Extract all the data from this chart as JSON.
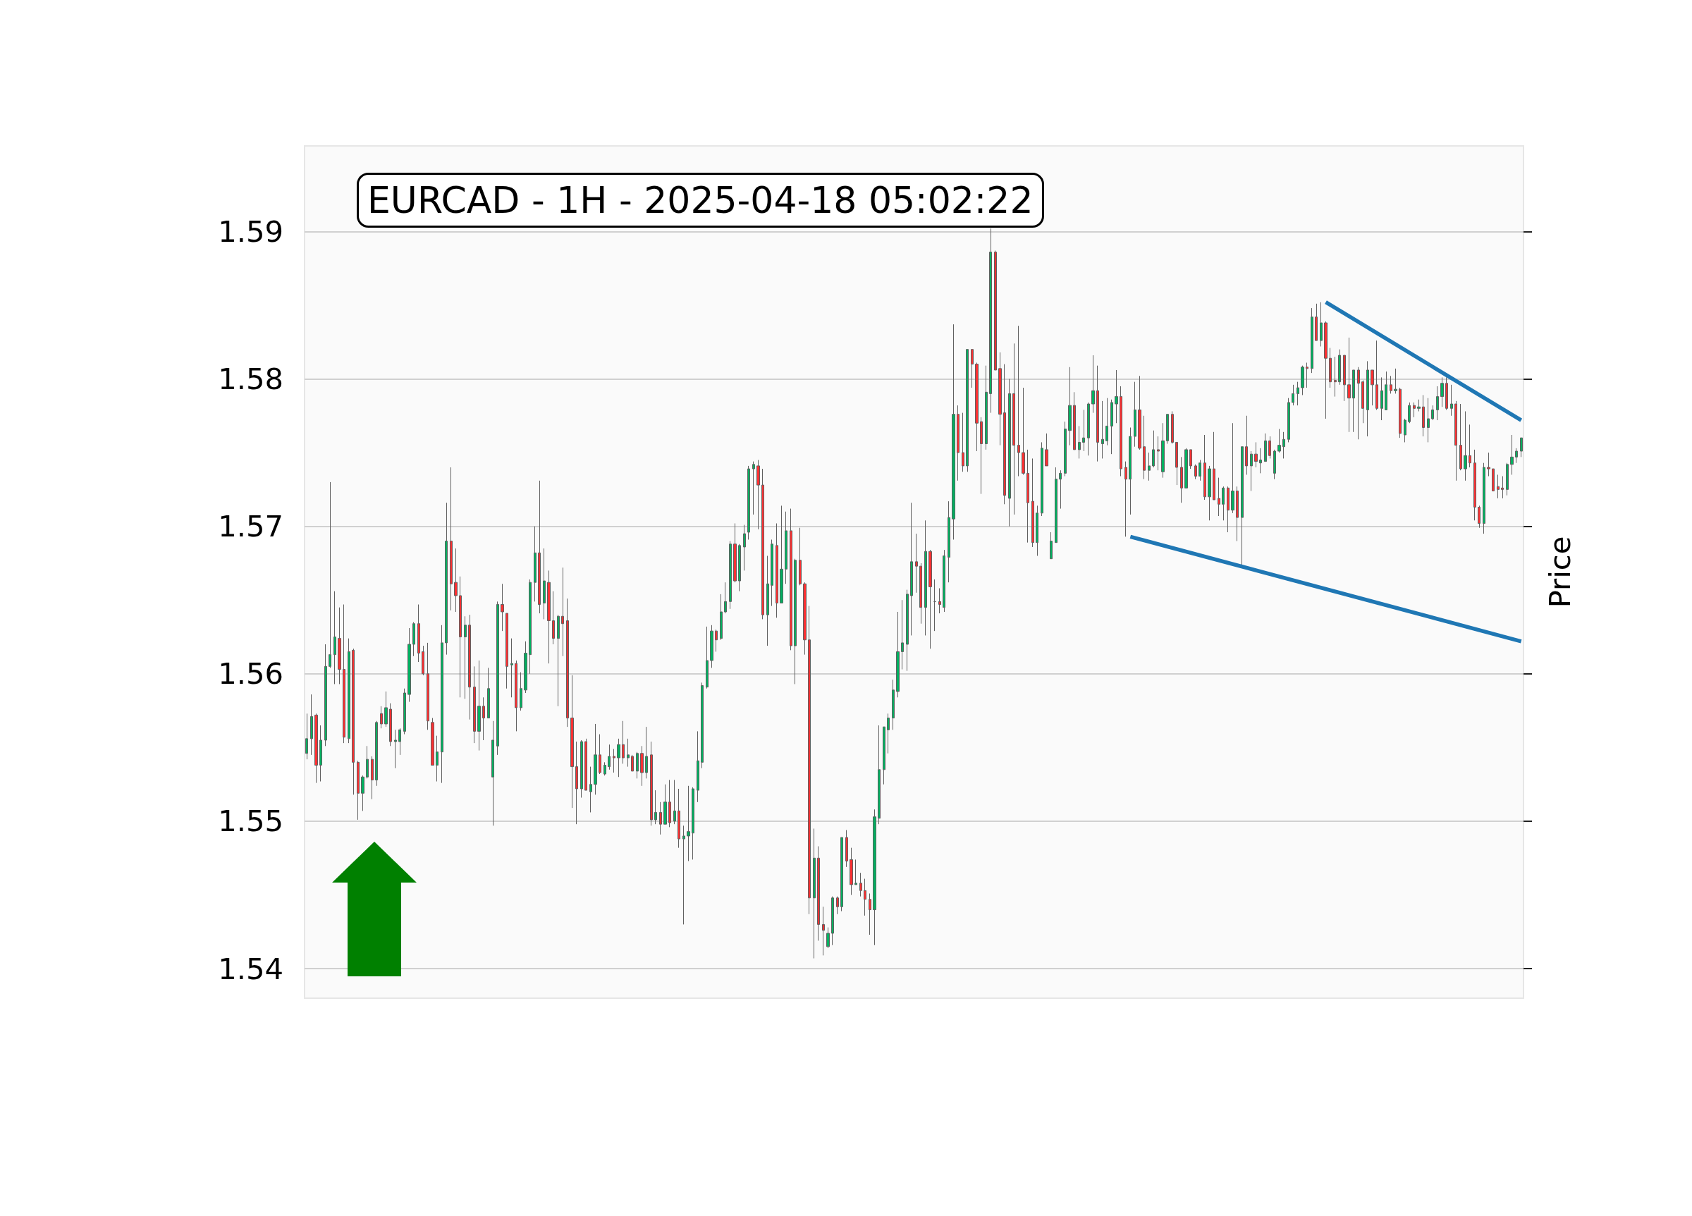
{
  "chart_data": {
    "type": "candlestick",
    "title": "EURCAD - 1H - 2025-04-18 05:02:22",
    "ylabel": "Price",
    "categories": [
      null,
      null,
      null,
      null,
      null,
      null,
      null,
      null,
      null,
      null,
      null,
      null,
      null,
      null,
      null,
      null,
      null,
      null,
      null,
      null,
      null,
      null,
      null,
      null,
      null,
      null,
      null,
      null,
      null,
      null,
      null,
      null,
      null,
      null,
      null,
      null,
      null,
      null,
      null,
      null,
      null,
      null,
      null,
      null,
      null,
      null,
      null,
      null,
      null,
      null,
      null,
      null,
      null,
      null,
      null,
      null,
      null,
      null,
      null,
      null,
      null,
      null,
      null,
      null,
      null,
      null,
      null,
      null,
      null,
      null,
      null,
      null,
      null,
      null,
      null,
      null,
      null,
      null,
      null,
      null,
      null,
      null,
      null,
      null,
      null,
      null,
      null,
      null,
      null,
      null,
      null,
      null,
      null,
      null,
      null,
      null,
      null,
      null,
      null,
      null,
      null,
      null,
      null,
      null,
      null,
      null,
      null,
      null,
      null,
      null,
      null,
      null,
      null,
      null,
      null,
      null,
      null,
      null,
      null,
      null,
      null,
      null,
      null,
      null,
      null,
      null,
      null,
      null,
      null,
      null,
      null,
      null,
      null,
      null,
      null,
      null,
      null,
      null,
      null,
      null,
      null,
      null,
      null,
      null,
      null,
      null,
      null,
      null,
      null,
      null,
      null,
      null,
      null,
      null,
      null,
      null,
      null,
      null,
      null,
      null,
      null,
      null,
      null,
      null,
      null,
      null,
      null,
      null,
      null,
      null,
      null,
      null,
      null,
      null,
      null,
      null,
      null,
      null,
      null,
      null,
      null,
      null,
      null,
      null,
      null,
      null,
      null,
      null,
      null,
      null,
      null,
      null,
      null,
      null,
      null,
      null,
      null,
      null,
      null,
      null,
      null,
      null,
      null,
      null,
      null,
      null,
      null,
      null,
      null,
      null,
      null,
      null,
      null,
      null,
      null,
      null,
      null,
      null,
      null,
      null,
      null,
      null,
      null,
      null,
      null,
      null,
      null,
      null,
      null,
      null,
      null,
      null,
      null,
      null,
      null,
      null,
      null,
      null,
      null,
      null,
      null,
      null,
      null,
      null,
      null,
      null,
      null,
      null,
      null,
      null,
      null,
      null,
      null,
      null,
      null,
      null,
      null,
      null,
      null,
      null,
      null,
      null
    ],
    "ohlc": [
      [
        1.5546,
        1.5573,
        1.5542,
        1.5556
      ],
      [
        1.5556,
        1.5586,
        1.5545,
        1.5571
      ],
      [
        1.5572,
        1.5573,
        1.5526,
        1.5538
      ],
      [
        1.5538,
        1.5565,
        1.5527,
        1.5555
      ],
      [
        1.5555,
        1.562,
        1.5551,
        1.5605
      ],
      [
        1.5605,
        1.573,
        1.5604,
        1.5613
      ],
      [
        1.5613,
        1.5656,
        1.5593,
        1.5625
      ],
      [
        1.5624,
        1.5645,
        1.5593,
        1.5603
      ],
      [
        1.5603,
        1.5647,
        1.5553,
        1.5557
      ],
      [
        1.5556,
        1.5624,
        1.5553,
        1.5615
      ],
      [
        1.5616,
        1.5617,
        1.5518,
        1.554
      ],
      [
        1.554,
        1.5541,
        1.5501,
        1.5519
      ],
      [
        1.5519,
        1.5531,
        1.5507,
        1.553
      ],
      [
        1.553,
        1.5551,
        1.5529,
        1.5542
      ],
      [
        1.5542,
        1.5544,
        1.5515,
        1.5528
      ],
      [
        1.5528,
        1.5568,
        1.5524,
        1.5567
      ],
      [
        1.5573,
        1.5578,
        1.5563,
        1.5566
      ],
      [
        1.5566,
        1.5588,
        1.5564,
        1.5577
      ],
      [
        1.5576,
        1.558,
        1.5551,
        1.5554
      ],
      [
        1.5554,
        1.5562,
        1.5536,
        1.5555
      ],
      [
        1.5554,
        1.5563,
        1.5545,
        1.5562
      ],
      [
        1.5561,
        1.559,
        1.5559,
        1.5587
      ],
      [
        1.5586,
        1.5631,
        1.5581,
        1.562
      ],
      [
        1.562,
        1.5635,
        1.5612,
        1.5634
      ],
      [
        1.5634,
        1.5647,
        1.5608,
        1.5614
      ],
      [
        1.5615,
        1.5619,
        1.5599,
        1.56
      ],
      [
        1.56,
        1.5621,
        1.5562,
        1.5568
      ],
      [
        1.5567,
        1.557,
        1.5538,
        1.5538
      ],
      [
        1.5538,
        1.5558,
        1.5527,
        1.5547
      ],
      [
        1.5547,
        1.5633,
        1.5526,
        1.5621
      ],
      [
        1.5621,
        1.5716,
        1.5613,
        1.569
      ],
      [
        1.569,
        1.574,
        1.5643,
        1.5661
      ],
      [
        1.5662,
        1.5685,
        1.5642,
        1.5653
      ],
      [
        1.5653,
        1.5666,
        1.5584,
        1.5625
      ],
      [
        1.5625,
        1.5639,
        1.5583,
        1.5633
      ],
      [
        1.5633,
        1.564,
        1.5569,
        1.5591
      ],
      [
        1.5591,
        1.5605,
        1.5553,
        1.5561
      ],
      [
        1.5561,
        1.5609,
        1.5548,
        1.5578
      ],
      [
        1.5578,
        1.5584,
        1.5555,
        1.557
      ],
      [
        1.557,
        1.5604,
        1.557,
        1.559
      ],
      [
        1.553,
        1.5568,
        1.5497,
        1.5555
      ],
      [
        1.5551,
        1.5649,
        1.5545,
        1.5647
      ],
      [
        1.5647,
        1.5661,
        1.5629,
        1.5642
      ],
      [
        1.5641,
        1.5641,
        1.559,
        1.5605
      ],
      [
        1.5606,
        1.5624,
        1.5584,
        1.5607
      ],
      [
        1.5607,
        1.5609,
        1.5561,
        1.5577
      ],
      [
        1.5577,
        1.5601,
        1.5575,
        1.559
      ],
      [
        1.5589,
        1.5622,
        1.5587,
        1.5614
      ],
      [
        1.5613,
        1.5664,
        1.56,
        1.5662
      ],
      [
        1.5662,
        1.57,
        1.5649,
        1.5682
      ],
      [
        1.5682,
        1.5731,
        1.5641,
        1.5647
      ],
      [
        1.5648,
        1.5685,
        1.5637,
        1.5663
      ],
      [
        1.5662,
        1.567,
        1.5607,
        1.5636
      ],
      [
        1.5636,
        1.5656,
        1.562,
        1.5624
      ],
      [
        1.5624,
        1.564,
        1.5578,
        1.5639
      ],
      [
        1.5639,
        1.5672,
        1.5612,
        1.5634
      ],
      [
        1.5636,
        1.5651,
        1.5564,
        1.557
      ],
      [
        1.557,
        1.5599,
        1.5509,
        1.5537
      ],
      [
        1.5537,
        1.5554,
        1.5498,
        1.5522
      ],
      [
        1.5522,
        1.5555,
        1.5516,
        1.5554
      ],
      [
        1.5554,
        1.5556,
        1.5521,
        1.5521
      ],
      [
        1.552,
        1.5537,
        1.5506,
        1.5525
      ],
      [
        1.5525,
        1.5566,
        1.5518,
        1.5545
      ],
      [
        1.5545,
        1.5559,
        1.5532,
        1.5533
      ],
      [
        1.5532,
        1.554,
        1.5531,
        1.5538
      ],
      [
        1.5537,
        1.5552,
        1.5535,
        1.5544
      ],
      [
        1.5544,
        1.5549,
        1.5533,
        1.5543
      ],
      [
        1.5543,
        1.5556,
        1.553,
        1.5552
      ],
      [
        1.5552,
        1.5568,
        1.5539,
        1.5543
      ],
      [
        1.5543,
        1.5556,
        1.5537,
        1.5545
      ],
      [
        1.5544,
        1.5545,
        1.5534,
        1.5534
      ],
      [
        1.5534,
        1.5547,
        1.5529,
        1.5546
      ],
      [
        1.5546,
        1.5551,
        1.5524,
        1.5533
      ],
      [
        1.5533,
        1.5564,
        1.5529,
        1.5544
      ],
      [
        1.5545,
        1.5554,
        1.5497,
        1.5501
      ],
      [
        1.5501,
        1.5521,
        1.5498,
        1.5506
      ],
      [
        1.5506,
        1.5513,
        1.5491,
        1.5498
      ],
      [
        1.5498,
        1.5525,
        1.5498,
        1.5513
      ],
      [
        1.5513,
        1.5528,
        1.5496,
        1.5499
      ],
      [
        1.55,
        1.5528,
        1.5498,
        1.5507
      ],
      [
        1.5507,
        1.5522,
        1.5482,
        1.5488
      ],
      [
        1.5488,
        1.5497,
        1.543,
        1.549
      ],
      [
        1.549,
        1.5524,
        1.5473,
        1.5493
      ],
      [
        1.5492,
        1.5523,
        1.5474,
        1.5522
      ],
      [
        1.5521,
        1.5561,
        1.5513,
        1.5541
      ],
      [
        1.554,
        1.5594,
        1.5536,
        1.5592
      ],
      [
        1.5591,
        1.5632,
        1.559,
        1.5609
      ],
      [
        1.5609,
        1.5633,
        1.5604,
        1.5629
      ],
      [
        1.5629,
        1.563,
        1.5615,
        1.5623
      ],
      [
        1.5624,
        1.5654,
        1.5623,
        1.5642
      ],
      [
        1.5642,
        1.5662,
        1.5641,
        1.5649
      ],
      [
        1.5649,
        1.569,
        1.5644,
        1.5688
      ],
      [
        1.5688,
        1.5702,
        1.5662,
        1.5663
      ],
      [
        1.5663,
        1.5688,
        1.5656,
        1.5687
      ],
      [
        1.5686,
        1.5701,
        1.567,
        1.5695
      ],
      [
        1.5696,
        1.5741,
        1.5691,
        1.5739
      ],
      [
        1.5739,
        1.5744,
        1.5708,
        1.5742
      ],
      [
        1.5741,
        1.5745,
        1.5698,
        1.5728
      ],
      [
        1.5728,
        1.5739,
        1.5637,
        1.564
      ],
      [
        1.564,
        1.568,
        1.5619,
        1.5661
      ],
      [
        1.566,
        1.5691,
        1.5646,
        1.5688
      ],
      [
        1.5687,
        1.5702,
        1.5638,
        1.5648
      ],
      [
        1.5648,
        1.5714,
        1.5648,
        1.5671
      ],
      [
        1.5671,
        1.571,
        1.5661,
        1.5697
      ],
      [
        1.5697,
        1.5712,
        1.5616,
        1.5619
      ],
      [
        1.5619,
        1.5678,
        1.5593,
        1.5677
      ],
      [
        1.5677,
        1.5699,
        1.566,
        1.5661
      ],
      [
        1.5661,
        1.5662,
        1.5613,
        1.5623
      ],
      [
        1.5623,
        1.5646,
        1.5437,
        1.5448
      ],
      [
        1.5448,
        1.5495,
        1.5407,
        1.5475
      ],
      [
        1.5475,
        1.5483,
        1.5419,
        1.543
      ],
      [
        1.543,
        1.5442,
        1.5409,
        1.5426
      ],
      [
        1.5415,
        1.5428,
        1.5414,
        1.5424
      ],
      [
        1.5424,
        1.5449,
        1.5416,
        1.5448
      ],
      [
        1.5448,
        1.5449,
        1.5437,
        1.5442
      ],
      [
        1.5442,
        1.5489,
        1.5439,
        1.5489
      ],
      [
        1.5489,
        1.5494,
        1.5469,
        1.5473
      ],
      [
        1.5474,
        1.5482,
        1.545,
        1.5457
      ],
      [
        1.5457,
        1.5474,
        1.5457,
        1.5458
      ],
      [
        1.5458,
        1.5465,
        1.5449,
        1.5453
      ],
      [
        1.5453,
        1.5461,
        1.5436,
        1.5447
      ],
      [
        1.5447,
        1.5451,
        1.5423,
        1.544
      ],
      [
        1.544,
        1.5508,
        1.5416,
        1.5503
      ],
      [
        1.5502,
        1.5565,
        1.5498,
        1.5535
      ],
      [
        1.5535,
        1.5564,
        1.5525,
        1.5564
      ],
      [
        1.5562,
        1.5573,
        1.5546,
        1.557
      ],
      [
        1.557,
        1.5596,
        1.5562,
        1.5589
      ],
      [
        1.5588,
        1.5642,
        1.5584,
        1.5615
      ],
      [
        1.5615,
        1.565,
        1.5603,
        1.5621
      ],
      [
        1.562,
        1.5657,
        1.5602,
        1.5654
      ],
      [
        1.5653,
        1.5716,
        1.5626,
        1.5676
      ],
      [
        1.5676,
        1.5695,
        1.5655,
        1.5673
      ],
      [
        1.5673,
        1.5675,
        1.5634,
        1.5645
      ],
      [
        1.5645,
        1.5704,
        1.5626,
        1.5683
      ],
      [
        1.5683,
        1.5684,
        1.5617,
        1.5659
      ],
      [
        1.5649,
        1.5664,
        1.5629,
        1.5649
      ],
      [
        1.5649,
        1.5658,
        1.5641,
        1.5647
      ],
      [
        1.5645,
        1.5684,
        1.5642,
        1.568
      ],
      [
        1.5679,
        1.5717,
        1.5662,
        1.5706
      ],
      [
        1.5705,
        1.5837,
        1.5691,
        1.5776
      ],
      [
        1.5776,
        1.5782,
        1.5731,
        1.575
      ],
      [
        1.575,
        1.5777,
        1.5737,
        1.5741
      ],
      [
        1.5741,
        1.582,
        1.5737,
        1.582
      ],
      [
        1.582,
        1.582,
        1.5794,
        1.581
      ],
      [
        1.581,
        1.5811,
        1.5751,
        1.577
      ],
      [
        1.5771,
        1.5774,
        1.5722,
        1.5756
      ],
      [
        1.5756,
        1.5809,
        1.5752,
        1.5791
      ],
      [
        1.579,
        1.5902,
        1.5777,
        1.5886
      ],
      [
        1.5886,
        1.5887,
        1.5806,
        1.5806
      ],
      [
        1.5807,
        1.5818,
        1.5755,
        1.5776
      ],
      [
        1.5777,
        1.581,
        1.5715,
        1.5721
      ],
      [
        1.5719,
        1.58,
        1.57,
        1.579
      ],
      [
        1.579,
        1.5824,
        1.5708,
        1.5755
      ],
      [
        1.5755,
        1.5836,
        1.5734,
        1.575
      ],
      [
        1.575,
        1.5794,
        1.5735,
        1.5736
      ],
      [
        1.5736,
        1.5752,
        1.5689,
        1.5716
      ],
      [
        1.5717,
        1.5746,
        1.5686,
        1.5689
      ],
      [
        1.5689,
        1.5714,
        1.568,
        1.5709
      ],
      [
        1.5709,
        1.5757,
        1.5707,
        1.5753
      ],
      [
        1.5752,
        1.5763,
        1.5741,
        1.5741
      ],
      [
        1.5678,
        1.5696,
        1.5678,
        1.569
      ],
      [
        1.5689,
        1.574,
        1.5689,
        1.5732
      ],
      [
        1.5732,
        1.5738,
        1.5712,
        1.5736
      ],
      [
        1.5736,
        1.5771,
        1.5734,
        1.5766
      ],
      [
        1.5765,
        1.5808,
        1.5755,
        1.5782
      ],
      [
        1.5782,
        1.5791,
        1.5752,
        1.5752
      ],
      [
        1.5752,
        1.5768,
        1.5746,
        1.5757
      ],
      [
        1.5757,
        1.5779,
        1.5751,
        1.576
      ],
      [
        1.576,
        1.5784,
        1.5748,
        1.5783
      ],
      [
        1.5783,
        1.5816,
        1.5777,
        1.5792
      ],
      [
        1.5792,
        1.5809,
        1.5744,
        1.5757
      ],
      [
        1.5756,
        1.5785,
        1.5746,
        1.5759
      ],
      [
        1.5758,
        1.5787,
        1.5755,
        1.5768
      ],
      [
        1.5768,
        1.5786,
        1.5749,
        1.5784
      ],
      [
        1.5783,
        1.5806,
        1.577,
        1.5788
      ],
      [
        1.5788,
        1.5795,
        1.5734,
        1.5739
      ],
      [
        1.574,
        1.5744,
        1.5693,
        1.5732
      ],
      [
        1.5732,
        1.5767,
        1.5708,
        1.5761
      ],
      [
        1.5761,
        1.5798,
        1.5754,
        1.5779
      ],
      [
        1.5779,
        1.5802,
        1.5752,
        1.5753
      ],
      [
        1.5754,
        1.5775,
        1.5732,
        1.5738
      ],
      [
        1.5738,
        1.575,
        1.5731,
        1.5741
      ],
      [
        1.5741,
        1.5765,
        1.574,
        1.5752
      ],
      [
        1.5752,
        1.5761,
        1.5738,
        1.5751
      ],
      [
        1.5737,
        1.577,
        1.5733,
        1.5758
      ],
      [
        1.5758,
        1.5776,
        1.5756,
        1.5776
      ],
      [
        1.5776,
        1.5778,
        1.5756,
        1.5757
      ],
      [
        1.5757,
        1.5757,
        1.5728,
        1.574
      ],
      [
        1.574,
        1.5747,
        1.5716,
        1.5726
      ],
      [
        1.5726,
        1.5753,
        1.5726,
        1.5752
      ],
      [
        1.5752,
        1.5752,
        1.5739,
        1.5741
      ],
      [
        1.5741,
        1.5742,
        1.5732,
        1.5734
      ],
      [
        1.5734,
        1.5745,
        1.5731,
        1.5743
      ],
      [
        1.5743,
        1.5762,
        1.5718,
        1.572
      ],
      [
        1.572,
        1.5741,
        1.5704,
        1.5739
      ],
      [
        1.5739,
        1.5764,
        1.5718,
        1.5718
      ],
      [
        1.5719,
        1.5733,
        1.5707,
        1.5715
      ],
      [
        1.5715,
        1.5727,
        1.5704,
        1.5726
      ],
      [
        1.5726,
        1.5727,
        1.5696,
        1.5711
      ],
      [
        1.5711,
        1.577,
        1.5709,
        1.5724
      ],
      [
        1.5724,
        1.5727,
        1.569,
        1.5706
      ],
      [
        1.5706,
        1.5754,
        1.5673,
        1.5754
      ],
      [
        1.5754,
        1.5775,
        1.5735,
        1.5741
      ],
      [
        1.5741,
        1.5751,
        1.5724,
        1.5749
      ],
      [
        1.5749,
        1.5757,
        1.574,
        1.5744
      ],
      [
        1.5743,
        1.5753,
        1.5736,
        1.5745
      ],
      [
        1.5744,
        1.5763,
        1.5744,
        1.5758
      ],
      [
        1.5758,
        1.5761,
        1.5746,
        1.5748
      ],
      [
        1.5736,
        1.5752,
        1.5732,
        1.5751
      ],
      [
        1.5751,
        1.5766,
        1.575,
        1.5755
      ],
      [
        1.5754,
        1.5764,
        1.5746,
        1.5759
      ],
      [
        1.5759,
        1.5787,
        1.5757,
        1.5784
      ],
      [
        1.5784,
        1.5796,
        1.5782,
        1.579
      ],
      [
        1.579,
        1.5798,
        1.5782,
        1.5794
      ],
      [
        1.5794,
        1.5809,
        1.5789,
        1.5808
      ],
      [
        1.5808,
        1.5811,
        1.5794,
        1.5807
      ],
      [
        1.5807,
        1.5848,
        1.5804,
        1.5842
      ],
      [
        1.5842,
        1.5851,
        1.5826,
        1.5826
      ],
      [
        1.5826,
        1.5852,
        1.5822,
        1.5838
      ],
      [
        1.5838,
        1.5839,
        1.5773,
        1.5814
      ],
      [
        1.5814,
        1.5821,
        1.5794,
        1.5798
      ],
      [
        1.5799,
        1.5815,
        1.5788,
        1.5798
      ],
      [
        1.5798,
        1.582,
        1.5796,
        1.5816
      ],
      [
        1.5816,
        1.5816,
        1.5785,
        1.5796
      ],
      [
        1.5796,
        1.5828,
        1.5764,
        1.5787
      ],
      [
        1.5787,
        1.5806,
        1.5764,
        1.5806
      ],
      [
        1.5806,
        1.5808,
        1.5759,
        1.5797
      ],
      [
        1.5798,
        1.5799,
        1.577,
        1.578
      ],
      [
        1.5779,
        1.5812,
        1.5761,
        1.5806
      ],
      [
        1.5806,
        1.5806,
        1.5782,
        1.5796
      ],
      [
        1.5796,
        1.5826,
        1.5779,
        1.578
      ],
      [
        1.578,
        1.5801,
        1.5772,
        1.5792
      ],
      [
        1.5779,
        1.5805,
        1.5779,
        1.5796
      ],
      [
        1.5796,
        1.5802,
        1.579,
        1.5792
      ],
      [
        1.5792,
        1.5807,
        1.579,
        1.5793
      ],
      [
        1.5793,
        1.5794,
        1.576,
        1.5763
      ],
      [
        1.5762,
        1.5773,
        1.5757,
        1.5772
      ],
      [
        1.5771,
        1.5784,
        1.577,
        1.5782
      ],
      [
        1.5782,
        1.5784,
        1.5774,
        1.578
      ],
      [
        1.578,
        1.5786,
        1.5778,
        1.5781
      ],
      [
        1.5781,
        1.5789,
        1.5761,
        1.5767
      ],
      [
        1.5767,
        1.5787,
        1.5757,
        1.5773
      ],
      [
        1.5773,
        1.5782,
        1.5772,
        1.5779
      ],
      [
        1.5779,
        1.5795,
        1.5772,
        1.5788
      ],
      [
        1.5788,
        1.5801,
        1.5781,
        1.5797
      ],
      [
        1.5797,
        1.5801,
        1.5779,
        1.578
      ],
      [
        1.578,
        1.5796,
        1.5775,
        1.5783
      ],
      [
        1.5783,
        1.5785,
        1.5731,
        1.5755
      ],
      [
        1.5755,
        1.5783,
        1.5738,
        1.5739
      ],
      [
        1.5739,
        1.5778,
        1.5731,
        1.5748
      ],
      [
        1.5748,
        1.5769,
        1.574,
        1.5743
      ],
      [
        1.5743,
        1.5752,
        1.5704,
        1.5713
      ],
      [
        1.5713,
        1.5714,
        1.5699,
        1.5702
      ],
      [
        1.5702,
        1.5743,
        1.5695,
        1.574
      ],
      [
        1.574,
        1.575,
        1.5734,
        1.5739
      ],
      [
        1.5739,
        1.5739,
        1.5724,
        1.5724
      ],
      [
        1.5727,
        1.5735,
        1.5719,
        1.5725
      ],
      [
        1.5726,
        1.5734,
        1.5719,
        1.5725
      ],
      [
        1.5725,
        1.5743,
        1.5721,
        1.5742
      ],
      [
        1.5742,
        1.5762,
        1.5735,
        1.5747
      ],
      [
        1.5747,
        1.5753,
        1.5743,
        1.5751
      ],
      [
        1.5751,
        1.576,
        1.5747,
        1.576
      ]
    ],
    "colors": [
      "#00b060",
      "#00b060",
      "#fe3032",
      "#00b060",
      "#00b060",
      "#00b060",
      "#00b060",
      "#fe3032",
      "#fe3032",
      "#00b060",
      "#fe3032",
      "#fe3032",
      "#00b060",
      "#00b060",
      "#fe3032",
      "#00b060",
      "#fe3032",
      "#00b060",
      "#fe3032",
      "#00b060",
      "#00b060",
      "#00b060",
      "#00b060",
      "#00b060",
      "#fe3032",
      "#fe3032",
      "#fe3032",
      "#fe3032",
      "#00b060",
      "#00b060",
      "#00b060",
      "#fe3032",
      "#fe3032",
      "#fe3032",
      "#00b060",
      "#fe3032",
      "#fe3032",
      "#00b060",
      "#fe3032",
      "#00b060",
      "#00b060",
      "#00b060",
      "#fe3032",
      "#fe3032",
      "#00b060",
      "#fe3032",
      "#00b060",
      "#00b060",
      "#00b060",
      "#00b060",
      "#fe3032",
      "#00b060",
      "#fe3032",
      "#fe3032",
      "#00b060",
      "#fe3032",
      "#fe3032",
      "#fe3032",
      "#fe3032",
      "#00b060",
      "#fe3032",
      "#00b060",
      "#00b060",
      "#fe3032",
      "#00b060",
      "#00b060",
      "#fe3032",
      "#00b060",
      "#fe3032",
      "#00b060",
      "#fe3032",
      "#00b060",
      "#fe3032",
      "#00b060",
      "#fe3032",
      "#00b060",
      "#fe3032",
      "#00b060",
      "#fe3032",
      "#00b060",
      "#fe3032",
      "#00b060",
      "#00b060",
      "#00b060",
      "#00b060",
      "#00b060",
      "#00b060",
      "#00b060",
      "#fe3032",
      "#00b060",
      "#00b060",
      "#00b060",
      "#fe3032",
      "#00b060",
      "#00b060",
      "#00b060",
      "#00b060",
      "#fe3032",
      "#fe3032",
      "#00b060",
      "#00b060",
      "#fe3032",
      "#00b060",
      "#00b060",
      "#fe3032",
      "#00b060",
      "#fe3032",
      "#fe3032",
      "#fe3032",
      "#00b060",
      "#fe3032",
      "#fe3032",
      "#00b060",
      "#00b060",
      "#fe3032",
      "#00b060",
      "#fe3032",
      "#fe3032",
      "#00b060",
      "#fe3032",
      "#fe3032",
      "#fe3032",
      "#00b060",
      "#00b060",
      "#00b060",
      "#00b060",
      "#00b060",
      "#00b060",
      "#00b060",
      "#00b060",
      "#00b060",
      "#fe3032",
      "#fe3032",
      "#00b060",
      "#fe3032",
      "#606060",
      "#fe3032",
      "#00b060",
      "#00b060",
      "#00b060",
      "#fe3032",
      "#fe3032",
      "#00b060",
      "#fe3032",
      "#fe3032",
      "#fe3032",
      "#00b060",
      "#00b060",
      "#fe3032",
      "#fe3032",
      "#fe3032",
      "#00b060",
      "#fe3032",
      "#fe3032",
      "#fe3032",
      "#fe3032",
      "#fe3032",
      "#00b060",
      "#00b060",
      "#fe3032",
      "#00b060",
      "#00b060",
      "#00b060",
      "#00b060",
      "#00b060",
      "#fe3032",
      "#00b060",
      "#00b060",
      "#00b060",
      "#00b060",
      "#fe3032",
      "#00b060",
      "#00b060",
      "#00b060",
      "#00b060",
      "#fe3032",
      "#fe3032",
      "#00b060",
      "#00b060",
      "#fe3032",
      "#fe3032",
      "#00b060",
      "#00b060",
      "#fe3032",
      "#00b060",
      "#00b060",
      "#fe3032",
      "#fe3032",
      "#fe3032",
      "#00b060",
      "#fe3032",
      "#fe3032",
      "#00b060",
      "#fe3032",
      "#00b060",
      "#fe3032",
      "#fe3032",
      "#00b060",
      "#fe3032",
      "#00b060",
      "#fe3032",
      "#00b060",
      "#fe3032",
      "#00b060",
      "#fe3032",
      "#00b060",
      "#00b060",
      "#fe3032",
      "#00b060",
      "#00b060",
      "#00b060",
      "#00b060",
      "#00b060",
      "#00b060",
      "#00b060",
      "#fe3032",
      "#00b060",
      "#fe3032",
      "#00b060",
      "#fe3032",
      "#fe3032",
      "#fe3032",
      "#00b060",
      "#fe3032",
      "#fe3032",
      "#00b060",
      "#fe3032",
      "#fe3032",
      "#00b060",
      "#fe3032",
      "#fe3032",
      "#00b060",
      "#00b060",
      "#fe3032",
      "#00b060",
      "#fe3032",
      "#00b060",
      "#00b060",
      "#fe3032",
      "#00b060",
      "#fe3032",
      "#00b060",
      "#00b060",
      "#00b060",
      "#00b060",
      "#fe3032",
      "#00b060",
      "#fe3032",
      "#fe3032",
      "#00b060",
      "#fe3032",
      "#fe3032",
      "#fe3032",
      "#00b060",
      "#fe3032",
      "#fe3032",
      "#fe3032",
      "#fe3032",
      "#00b060",
      "#00b060",
      "#00b060",
      "#00b060"
    ],
    "series": [
      {
        "type": "line",
        "color": "#1f77b4",
        "values": [
          null,
          null,
          null,
          null,
          null,
          null,
          null,
          null,
          null,
          null,
          null,
          null,
          null,
          null,
          null,
          null,
          null,
          null,
          null,
          null,
          null,
          null,
          null,
          null,
          null,
          null,
          null,
          null,
          null,
          null,
          null,
          null,
          null,
          null,
          null,
          null,
          null,
          null,
          null,
          null,
          null,
          null,
          null,
          null,
          null,
          null,
          null,
          null,
          null,
          null,
          null,
          null,
          null,
          null,
          null,
          null,
          null,
          null,
          null,
          null,
          null,
          null,
          null,
          null,
          null,
          null,
          null,
          null,
          null,
          null,
          null,
          null,
          null,
          null,
          null,
          null,
          null,
          null,
          null,
          null,
          null,
          null,
          null,
          null,
          null,
          null,
          null,
          null,
          null,
          null,
          null,
          null,
          null,
          null,
          null,
          null,
          null,
          null,
          null,
          null,
          null,
          null,
          null,
          null,
          null,
          null,
          null,
          null,
          null,
          null,
          null,
          null,
          null,
          null,
          null,
          null,
          null,
          null,
          null,
          null,
          null,
          null,
          null,
          null,
          null,
          null,
          null,
          null,
          null,
          null,
          null,
          null,
          null,
          null,
          null,
          null,
          null,
          null,
          null,
          null,
          null,
          null,
          null,
          null,
          null,
          null,
          null,
          null,
          null,
          null,
          null,
          null,
          null,
          null,
          null,
          null,
          null,
          null,
          null,
          null,
          null,
          null,
          null,
          null,
          null,
          null,
          null,
          null,
          null,
          null,
          null,
          null,
          null,
          null,
          null,
          null,
          null,
          1.5693,
          null,
          null,
          null,
          null,
          null,
          null,
          null,
          null,
          null,
          null,
          null,
          null,
          null,
          null,
          null,
          null,
          null,
          null,
          null,
          null,
          null,
          null,
          null,
          null,
          null,
          null,
          null,
          null,
          null,
          null,
          null,
          null,
          null,
          null,
          null,
          null,
          null,
          null,
          null,
          null,
          null,
          null,
          null,
          null,
          null,
          null,
          null,
          null,
          null,
          null,
          null,
          null,
          null,
          null,
          null,
          null,
          null,
          null,
          null,
          null,
          null,
          null,
          null,
          null,
          null,
          null,
          null,
          null,
          null,
          null,
          null,
          null,
          null,
          null,
          null,
          null,
          null,
          null,
          null,
          null,
          null,
          null,
          null,
          1.5622
        ]
      },
      {
        "type": "line",
        "color": "#1f77b4",
        "values": [
          null,
          null,
          null,
          null,
          null,
          null,
          null,
          null,
          null,
          null,
          null,
          null,
          null,
          null,
          null,
          null,
          null,
          null,
          null,
          null,
          null,
          null,
          null,
          null,
          null,
          null,
          null,
          null,
          null,
          null,
          null,
          null,
          null,
          null,
          null,
          null,
          null,
          null,
          null,
          null,
          null,
          null,
          null,
          null,
          null,
          null,
          null,
          null,
          null,
          null,
          null,
          null,
          null,
          null,
          null,
          null,
          null,
          null,
          null,
          null,
          null,
          null,
          null,
          null,
          null,
          null,
          null,
          null,
          null,
          null,
          null,
          null,
          null,
          null,
          null,
          null,
          null,
          null,
          null,
          null,
          null,
          null,
          null,
          null,
          null,
          null,
          null,
          null,
          null,
          null,
          null,
          null,
          null,
          null,
          null,
          null,
          null,
          null,
          null,
          null,
          null,
          null,
          null,
          null,
          null,
          null,
          null,
          null,
          null,
          null,
          null,
          null,
          null,
          null,
          null,
          null,
          null,
          null,
          null,
          null,
          null,
          null,
          null,
          null,
          null,
          null,
          null,
          null,
          null,
          null,
          null,
          null,
          null,
          null,
          null,
          null,
          null,
          null,
          null,
          null,
          null,
          null,
          null,
          null,
          null,
          null,
          null,
          null,
          null,
          null,
          null,
          null,
          null,
          null,
          null,
          null,
          null,
          null,
          null,
          null,
          null,
          null,
          null,
          null,
          null,
          null,
          null,
          null,
          null,
          null,
          null,
          null,
          null,
          null,
          null,
          null,
          null,
          null,
          null,
          null,
          null,
          null,
          null,
          null,
          null,
          null,
          null,
          null,
          null,
          null,
          null,
          null,
          null,
          null,
          null,
          null,
          null,
          null,
          null,
          null,
          null,
          null,
          null,
          null,
          null,
          null,
          null,
          null,
          null,
          null,
          null,
          null,
          null,
          null,
          null,
          null,
          null,
          null,
          null,
          1.5852,
          null,
          null,
          null,
          null,
          null,
          null,
          null,
          null,
          null,
          null,
          null,
          null,
          null,
          null,
          null,
          null,
          null,
          null,
          null,
          null,
          null,
          null,
          null,
          null,
          null,
          null,
          null,
          null,
          null,
          null,
          null,
          null,
          null,
          null,
          null,
          null,
          null,
          null,
          null,
          null,
          null,
          1.5772
        ]
      }
    ],
    "ylim": [
      1.538,
      1.5958
    ],
    "yticks": [
      1.54,
      1.55,
      1.56,
      1.57,
      1.58,
      1.59
    ],
    "grid": "y",
    "tick_labels": "y"
  }
}
